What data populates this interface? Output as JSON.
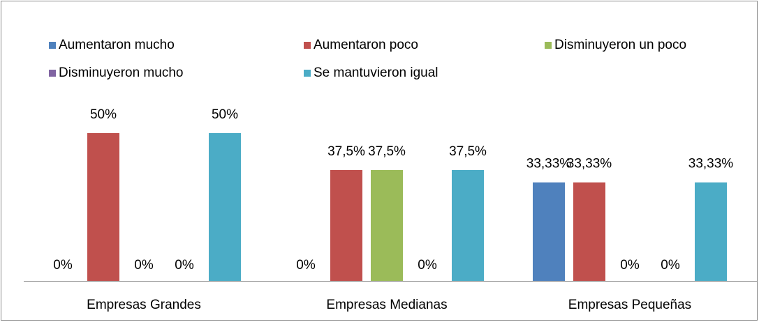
{
  "chart_data": {
    "type": "bar",
    "categories": [
      "Empresas Grandes",
      "Empresas Medianas",
      "Empresas Pequeñas"
    ],
    "series": [
      {
        "name": "Aumentaron mucho",
        "color": "#4f81bd",
        "values": [
          0,
          0,
          33.33
        ],
        "value_labels": [
          "0%",
          "0%",
          "33,33%"
        ]
      },
      {
        "name": "Aumentaron poco",
        "color": "#c0504d",
        "values": [
          50,
          37.5,
          33.33
        ],
        "value_labels": [
          "50%",
          "37,5%",
          "33,33%"
        ]
      },
      {
        "name": "Disminuyeron un poco",
        "color": "#9bbb59",
        "values": [
          0,
          37.5,
          0
        ],
        "value_labels": [
          "0%",
          "37,5%",
          "0%"
        ]
      },
      {
        "name": "Disminuyeron mucho",
        "color": "#8064a2",
        "values": [
          0,
          0,
          0
        ],
        "value_labels": [
          "0%",
          "0%",
          "0%"
        ]
      },
      {
        "name": "Se mantuvieron igual",
        "color": "#4bacc6",
        "values": [
          50,
          37.5,
          33.33
        ],
        "value_labels": [
          "50%",
          "37,5%",
          "33,33%"
        ]
      }
    ],
    "legend": "top"
  }
}
